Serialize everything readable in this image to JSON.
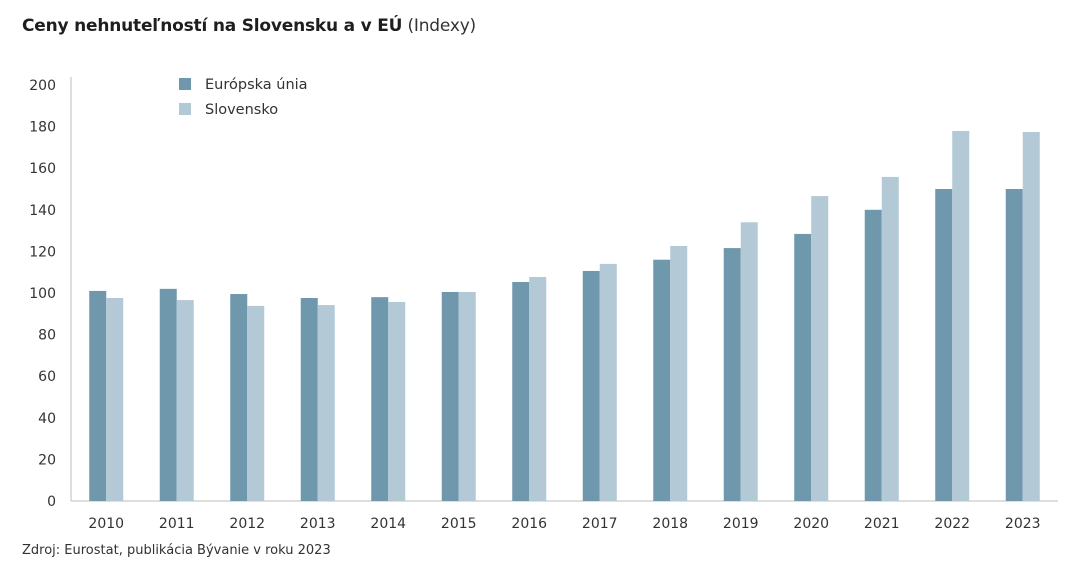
{
  "title_bold": "Ceny nehnuteľností na Slovensku a v EÚ",
  "title_light": "(Indexy)",
  "source": "Zdroj: Eurostat, publikácia Bývanie v roku 2023",
  "colors": {
    "eu": "#6f98ad",
    "sk": "#b3c9d6",
    "axis": "#bdbdbd"
  },
  "chart_data": {
    "type": "bar",
    "title": "Ceny nehnuteľností na Slovensku a v EÚ (Indexy)",
    "xlabel": "",
    "ylabel": "",
    "ylim": [
      0,
      200
    ],
    "yticks": [
      0,
      20,
      40,
      60,
      80,
      100,
      120,
      140,
      160,
      180,
      200
    ],
    "grid": false,
    "legend": "top-left",
    "categories": [
      "2010",
      "2011",
      "2012",
      "2013",
      "2014",
      "2015",
      "2016",
      "2017",
      "2018",
      "2019",
      "2020",
      "2021",
      "2022",
      "2023"
    ],
    "series": [
      {
        "name": "Európska únia",
        "values": [
          101,
          102,
          99.5,
          97.6,
          98,
          100.5,
          105.3,
          110.6,
          116,
          121.6,
          128.4,
          140,
          150,
          150
        ]
      },
      {
        "name": "Slovensko",
        "values": [
          97.6,
          96.6,
          93.8,
          94.2,
          95.7,
          100.5,
          107.7,
          114,
          122.6,
          134,
          146.6,
          155.8,
          177.9,
          177.4
        ]
      }
    ]
  }
}
